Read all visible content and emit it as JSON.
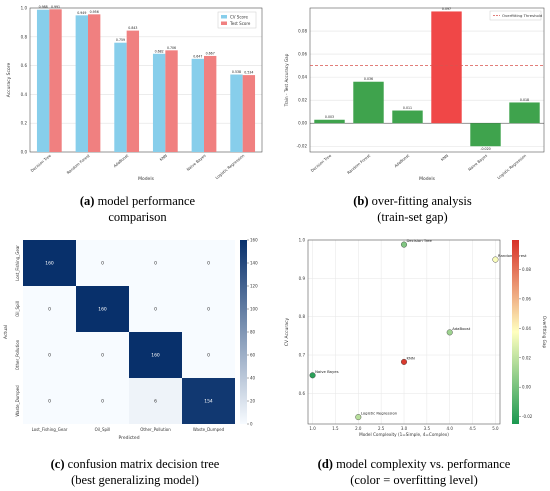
{
  "captions": {
    "a": {
      "tag": "(a)",
      "line1": "model performance",
      "line2": "comparison"
    },
    "b": {
      "tag": "(b)",
      "line1": "over-fitting analysis",
      "line2": "(train-set gap)"
    },
    "c": {
      "tag": "(c)",
      "line1": "confusion matrix decision tree",
      "line2": "(best generalizing model)"
    },
    "d": {
      "tag": "(d)",
      "line1": "model complexity vs. performance",
      "line2": "(color = overfitting level)"
    }
  },
  "chart_data": [
    {
      "type": "bar",
      "panel": "a",
      "xlabel": "Models",
      "ylabel": "Accuracy Score",
      "ylim": [
        0,
        1.0
      ],
      "yticks": [
        "0.0",
        "0.2",
        "0.4",
        "0.6",
        "0.8",
        "1.0"
      ],
      "categories": [
        "Decision Tree",
        "Random Forest",
        "AdaBoost",
        "KNN",
        "Naive Bayes",
        "Logistic Regression"
      ],
      "series": [
        {
          "name": "CV Score",
          "color": "#87CEEB",
          "values": [
            0.988,
            0.949,
            0.759,
            0.682,
            0.647,
            0.538
          ],
          "labels": [
            "0.988",
            "0.949",
            "0.759",
            "0.682",
            "0.647",
            "0.538"
          ]
        },
        {
          "name": "Test Score",
          "color": "#F08080",
          "values": [
            0.991,
            0.956,
            0.843,
            0.706,
            0.667,
            0.534
          ],
          "labels": [
            "0.991",
            "0.956",
            "0.843",
            "0.706",
            "0.667",
            "0.534"
          ]
        }
      ],
      "legend_position": "top-right",
      "grid": "y"
    },
    {
      "type": "bar",
      "panel": "b",
      "xlabel": "Models",
      "ylabel": "Train - Test Accuracy Gap",
      "ylim": [
        -0.025,
        0.1
      ],
      "yticks": [
        "-0.02",
        "0.00",
        "0.02",
        "0.04",
        "0.06",
        "0.08"
      ],
      "categories": [
        "Decision Tree",
        "Random Forest",
        "AdaBoost",
        "KNN",
        "Naive Bayes",
        "Logistic Regression"
      ],
      "values": [
        0.003,
        0.036,
        0.011,
        0.097,
        -0.02,
        0.018
      ],
      "labels": [
        "0.003",
        "0.036",
        "0.011",
        "0.097",
        "-0.020",
        "0.018"
      ],
      "colors": [
        "#3fa34d",
        "#3fa34d",
        "#3fa34d",
        "#f04747",
        "#3fa34d",
        "#3fa34d"
      ],
      "threshold": {
        "value": 0.05,
        "label": "Overfitting Threshold",
        "color": "#d9534f"
      },
      "legend_position": "top-right",
      "grid": "y"
    },
    {
      "type": "heatmap",
      "panel": "c",
      "xlabel": "Predicted",
      "ylabel": "Actual",
      "x_categories": [
        "Lost_Fishing_Gear",
        "Oil_Spill",
        "Other_Pollution",
        "Waste_Dumped"
      ],
      "y_categories": [
        "Lost_Fishing_Gear",
        "Oil_Spill",
        "Other_Pollution",
        "Waste_Dumped"
      ],
      "matrix": [
        [
          160,
          0,
          0,
          0
        ],
        [
          0,
          160,
          0,
          0
        ],
        [
          0,
          0,
          160,
          0
        ],
        [
          0,
          0,
          6,
          154
        ]
      ],
      "colorbar_ticks": [
        "0",
        "20",
        "40",
        "60",
        "80",
        "100",
        "120",
        "140",
        "160"
      ],
      "colormap": "Blues",
      "vmax": 160
    },
    {
      "type": "scatter",
      "panel": "d",
      "xlabel": "Model Complexity (1=Simple, 4=Complex)",
      "ylabel": "CV Accuracy",
      "xlim": [
        0.9,
        5.1
      ],
      "ylim": [
        0.52,
        1.0
      ],
      "xticks": [
        "1.0",
        "1.5",
        "2.0",
        "2.5",
        "3.0",
        "3.5",
        "4.0",
        "4.5",
        "5.0"
      ],
      "yticks": [
        "0.6",
        "0.7",
        "0.8",
        "0.9",
        "1.0"
      ],
      "points": [
        {
          "label": "Decision Tree",
          "x": 3.0,
          "y": 0.988,
          "gap": 0.003
        },
        {
          "label": "Random Forest",
          "x": 5.0,
          "y": 0.949,
          "gap": 0.036
        },
        {
          "label": "AdaBoost",
          "x": 4.0,
          "y": 0.759,
          "gap": 0.011
        },
        {
          "label": "KNN",
          "x": 3.0,
          "y": 0.682,
          "gap": 0.097
        },
        {
          "label": "Naive Bayes",
          "x": 1.0,
          "y": 0.647,
          "gap": -0.02
        },
        {
          "label": "Logistic Regression",
          "x": 2.0,
          "y": 0.538,
          "gap": 0.018
        }
      ],
      "colorbar_label": "Overfitting Gap",
      "colorbar_ticks": [
        "-0.02",
        "0.00",
        "0.02",
        "0.04",
        "0.06",
        "0.08"
      ],
      "color_range": [
        -0.025,
        0.1
      ],
      "colormap": "RdYlGn_r"
    }
  ]
}
